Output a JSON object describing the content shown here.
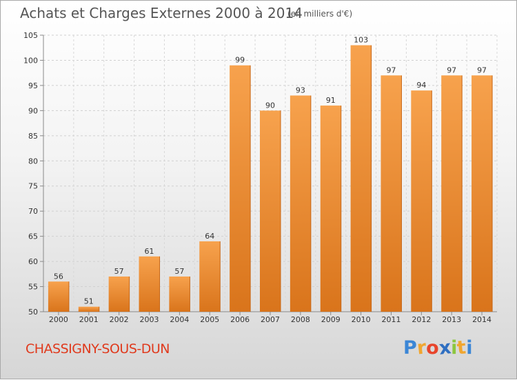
{
  "header": {
    "title": "Achats et Charges Externes 2000 à 2014",
    "unit": "(en milliers d'€)"
  },
  "footer": {
    "commune": "CHASSIGNY-SOUS-DUN",
    "logo_letters": [
      "P",
      "r",
      "o",
      "x",
      "i",
      "t",
      "i"
    ],
    "logo_colors": [
      "#3b86d6",
      "#f0a630",
      "#e8452c",
      "#2f6fc1",
      "#8cc63f",
      "#f0a630",
      "#3b86d6"
    ]
  },
  "colors": {
    "bar_top": "#f7a24d",
    "bar_bottom": "#d9741b",
    "commune": "#e03a1d"
  },
  "chart_data": {
    "type": "bar",
    "title": "Achats et Charges Externes 2000 à 2014",
    "subtitle": "(en milliers d'€)",
    "categories": [
      "2000",
      "2001",
      "2002",
      "2003",
      "2004",
      "2005",
      "2006",
      "2007",
      "2008",
      "2009",
      "2010",
      "2011",
      "2012",
      "2013",
      "2014"
    ],
    "values": [
      56,
      51,
      57,
      61,
      57,
      64,
      99,
      90,
      93,
      91,
      103,
      97,
      94,
      97,
      97
    ],
    "ylim": [
      50,
      105
    ],
    "yticks": [
      50,
      55,
      60,
      65,
      70,
      75,
      80,
      85,
      90,
      95,
      100,
      105
    ],
    "grid": true,
    "legend": "none"
  }
}
